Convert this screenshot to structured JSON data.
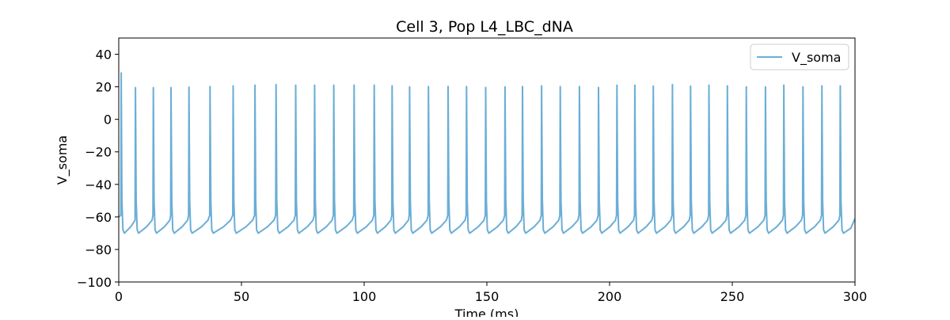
{
  "chart_data": {
    "type": "line",
    "title": "Cell 3, Pop L4_LBC_dNA",
    "xlabel": "Time (ms)",
    "ylabel": "V_soma",
    "xlim": [
      0,
      300
    ],
    "ylim": [
      -100,
      50
    ],
    "xticks": [
      0,
      50,
      100,
      150,
      200,
      250,
      300
    ],
    "yticks": [
      -100,
      -80,
      -60,
      -40,
      -20,
      0,
      20,
      40
    ],
    "grid": false,
    "legend": {
      "position": "top-right",
      "entries": [
        "V_soma"
      ]
    },
    "series": [
      {
        "name": "V_soma",
        "color": "#6baed6",
        "resting_start": -60,
        "trough": -70,
        "pre_spike": -59,
        "spikes": [
          {
            "t": 1.0,
            "peak": 28.5
          },
          {
            "t": 6.8,
            "peak": 19.5
          },
          {
            "t": 14.1,
            "peak": 19.5
          },
          {
            "t": 21.3,
            "peak": 19.5
          },
          {
            "t": 28.6,
            "peak": 19.8
          },
          {
            "t": 37.2,
            "peak": 20.2
          },
          {
            "t": 46.6,
            "peak": 20.6
          },
          {
            "t": 55.5,
            "peak": 21.0
          },
          {
            "t": 64.1,
            "peak": 21.4
          },
          {
            "t": 72.1,
            "peak": 21.0
          },
          {
            "t": 79.8,
            "peak": 21.0
          },
          {
            "t": 87.6,
            "peak": 21.0
          },
          {
            "t": 95.9,
            "peak": 21.0
          },
          {
            "t": 104.1,
            "peak": 21.0
          },
          {
            "t": 111.4,
            "peak": 20.6
          },
          {
            "t": 118.5,
            "peak": 20.0
          },
          {
            "t": 126.2,
            "peak": 20.2
          },
          {
            "t": 134.2,
            "peak": 20.2
          },
          {
            "t": 141.7,
            "peak": 20.2
          },
          {
            "t": 149.5,
            "peak": 19.6
          },
          {
            "t": 157.4,
            "peak": 20.0
          },
          {
            "t": 164.5,
            "peak": 20.2
          },
          {
            "t": 172.3,
            "peak": 20.6
          },
          {
            "t": 179.9,
            "peak": 20.2
          },
          {
            "t": 187.7,
            "peak": 20.2
          },
          {
            "t": 195.5,
            "peak": 19.6
          },
          {
            "t": 203.0,
            "peak": 21.0
          },
          {
            "t": 210.3,
            "peak": 21.0
          },
          {
            "t": 217.8,
            "peak": 20.4
          },
          {
            "t": 225.6,
            "peak": 21.4
          },
          {
            "t": 233.0,
            "peak": 20.4
          },
          {
            "t": 240.5,
            "peak": 21.0
          },
          {
            "t": 248.0,
            "peak": 20.6
          },
          {
            "t": 255.7,
            "peak": 20.0
          },
          {
            "t": 263.5,
            "peak": 20.0
          },
          {
            "t": 271.0,
            "peak": 21.0
          },
          {
            "t": 278.8,
            "peak": 20.0
          },
          {
            "t": 286.5,
            "peak": 20.6
          },
          {
            "t": 294.0,
            "peak": 20.6
          }
        ],
        "end_value": -61
      }
    ]
  }
}
